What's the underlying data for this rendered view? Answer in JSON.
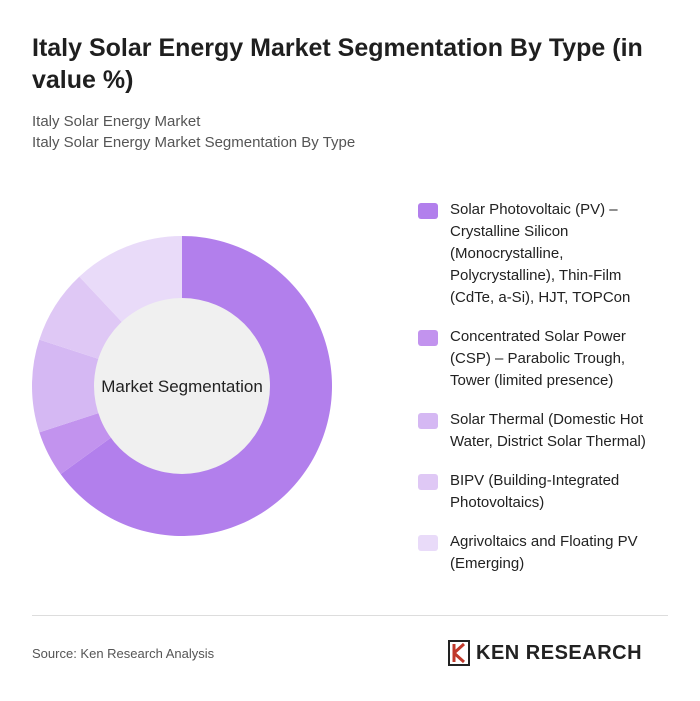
{
  "chart_data": {
    "type": "donut",
    "title": "Italy Solar Energy Market Segmentation By Type (in value %)",
    "subtitles": [
      "Italy Solar Energy Market",
      "Italy Solar Energy Market Segmentation By Type"
    ],
    "center_label": "Market Segmentation",
    "categories": [
      "Solar Photovoltaic (PV) – Crystalline Silicon (Monocrystalline, Polycrystalline), Thin-Film (CdTe, a-Si), HJT, TOPCon",
      "Concentrated Solar Power (CSP) – Parabolic Trough, Tower (limited presence)",
      "Solar Thermal (Domestic Hot Water, District Solar Thermal)",
      "BIPV (Building-Integrated Photovoltaics)",
      "Agrivoltaics and Floating PV (Emerging)"
    ],
    "values": [
      65,
      5,
      10,
      8,
      12
    ],
    "colors": [
      "#b27fec",
      "#c293ee",
      "#d5b8f3",
      "#dfc8f5",
      "#e9dbf9"
    ]
  },
  "source": "Source: Ken Research Analysis",
  "brand": "KEN RESEARCH"
}
